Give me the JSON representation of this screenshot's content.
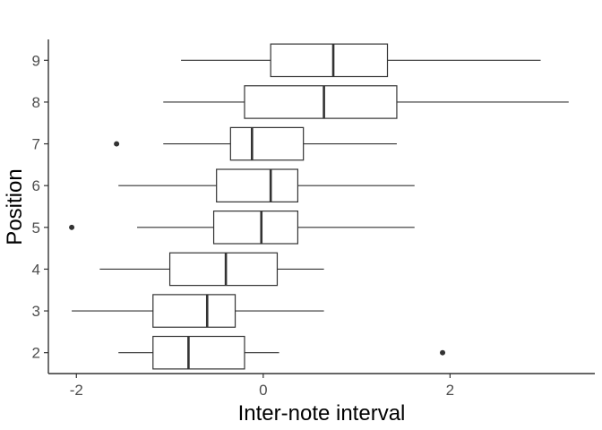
{
  "chart_data": {
    "type": "boxplot",
    "orientation": "horizontal",
    "title": "",
    "xlabel": "Inter-note interval",
    "ylabel": "Position",
    "xlim": [
      -2.3,
      3.55
    ],
    "x_ticks": [
      -2,
      0,
      2
    ],
    "categories": [
      "2",
      "3",
      "4",
      "5",
      "6",
      "7",
      "8",
      "9"
    ],
    "boxes": [
      {
        "category": "2",
        "whisker_low": -1.55,
        "q1": -1.18,
        "median": -0.8,
        "q3": -0.2,
        "whisker_high": 0.17,
        "outliers": [
          1.92
        ]
      },
      {
        "category": "3",
        "whisker_low": -2.05,
        "q1": -1.18,
        "median": -0.6,
        "q3": -0.3,
        "whisker_high": 0.65,
        "outliers": []
      },
      {
        "category": "4",
        "whisker_low": -1.75,
        "q1": -1.0,
        "median": -0.4,
        "q3": 0.15,
        "whisker_high": 0.65,
        "outliers": []
      },
      {
        "category": "5",
        "whisker_low": -1.35,
        "q1": -0.53,
        "median": -0.02,
        "q3": 0.37,
        "whisker_high": 1.62,
        "outliers": [
          -2.05
        ]
      },
      {
        "category": "6",
        "whisker_low": -1.55,
        "q1": -0.5,
        "median": 0.08,
        "q3": 0.37,
        "whisker_high": 1.62,
        "outliers": []
      },
      {
        "category": "7",
        "whisker_low": -1.07,
        "q1": -0.35,
        "median": -0.12,
        "q3": 0.43,
        "whisker_high": 1.43,
        "outliers": [
          -1.57
        ]
      },
      {
        "category": "8",
        "whisker_low": -1.07,
        "q1": -0.2,
        "median": 0.65,
        "q3": 1.43,
        "whisker_high": 3.27,
        "outliers": []
      },
      {
        "category": "9",
        "whisker_low": -0.88,
        "q1": 0.08,
        "median": 0.75,
        "q3": 1.33,
        "whisker_high": 2.97,
        "outliers": []
      }
    ],
    "grid": false,
    "legend": "none"
  }
}
